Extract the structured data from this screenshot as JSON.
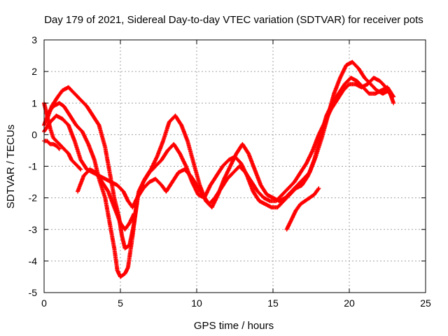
{
  "chart_data": {
    "type": "scatter",
    "title": "Day 179 of 2021, Sidereal Day-to-day VTEC variation (SDTVAR) for receiver pots",
    "xlabel": "GPS time / hours",
    "ylabel": "SDTVAR / TECUs",
    "xlim": [
      0,
      25
    ],
    "ylim": [
      -5,
      3
    ],
    "x_ticks": [
      "0",
      "5",
      "10",
      "15",
      "20",
      "25"
    ],
    "y_ticks": [
      "-5",
      "-4",
      "-3",
      "-2",
      "-1",
      "0",
      "1",
      "2",
      "3"
    ],
    "grid": true,
    "marker": "+",
    "color": "#ff0000",
    "series": [
      {
        "x": [
          0,
          0.3,
          0.6,
          1.0,
          1.3,
          1.7,
          2.1,
          2.5,
          2.9,
          3.3,
          3.6,
          4.0,
          4.3,
          4.6,
          4.8,
          5.0,
          5.3,
          5.5,
          5.8,
          6.1,
          6.5,
          6.9,
          7.3,
          7.7,
          8.1,
          8.5,
          8.9,
          9.3,
          9.7,
          10.1,
          10.5,
          10.9,
          11.3,
          11.7,
          12.1,
          12.5,
          12.9,
          13.3,
          13.7,
          14.1,
          14.5,
          14.9,
          15.3,
          15.7,
          16.1,
          16.5,
          16.9,
          17.3,
          17.7,
          18.1,
          18.5,
          18.9,
          19.3,
          19.7,
          20.1,
          20.5,
          20.9,
          21.3,
          21.7,
          22.1,
          22.5,
          22.9
        ],
        "y": [
          0.3,
          0.7,
          0.9,
          1.0,
          0.9,
          0.6,
          0.3,
          0.1,
          -0.3,
          -0.8,
          -1.4,
          -2.0,
          -2.8,
          -3.6,
          -4.3,
          -4.5,
          -4.4,
          -4.2,
          -3.2,
          -2.0,
          -1.5,
          -1.2,
          -1.0,
          -0.8,
          -0.5,
          -0.3,
          -0.6,
          -1.0,
          -1.5,
          -1.9,
          -2.0,
          -1.6,
          -1.3,
          -1.0,
          -0.8,
          -0.7,
          -0.9,
          -1.3,
          -1.8,
          -2.1,
          -2.2,
          -2.3,
          -2.3,
          -2.1,
          -1.9,
          -1.7,
          -1.6,
          -1.3,
          -0.8,
          -0.1,
          0.6,
          1.0,
          1.3,
          1.6,
          1.8,
          1.7,
          1.5,
          1.3,
          1.3,
          1.4,
          1.5,
          1.2
        ]
      },
      {
        "x": [
          0.2,
          0.5,
          0.9,
          1.2,
          1.6,
          2.0,
          2.4,
          2.8,
          3.2,
          3.6,
          4.0,
          4.3,
          4.6,
          4.9,
          5.1,
          5.3,
          5.6,
          5.9,
          6.2,
          6.6,
          7.0,
          7.4,
          7.8,
          8.2,
          8.6,
          9.0,
          9.4,
          9.8,
          10.2,
          10.6,
          11.0,
          11.4,
          11.8,
          12.2,
          12.6,
          13.0,
          13.4,
          13.8,
          14.2,
          14.6,
          15.0,
          15.4,
          15.8,
          16.2,
          16.6,
          17.0,
          17.4,
          17.8,
          18.2,
          18.6,
          19.0,
          19.4,
          19.8,
          20.2,
          20.6,
          21.0,
          21.4,
          21.8,
          22.2,
          22.6,
          22.9
        ],
        "y": [
          0.5,
          0.9,
          1.2,
          1.4,
          1.5,
          1.3,
          1.1,
          0.9,
          0.6,
          0.3,
          -0.4,
          -1.2,
          -2.0,
          -2.6,
          -3.2,
          -3.6,
          -3.5,
          -2.8,
          -1.8,
          -1.4,
          -1.1,
          -0.7,
          -0.2,
          0.4,
          0.6,
          0.3,
          -0.2,
          -0.9,
          -1.6,
          -2.1,
          -2.3,
          -1.9,
          -1.4,
          -1.0,
          -0.6,
          -0.3,
          -0.6,
          -1.1,
          -1.6,
          -1.9,
          -2.0,
          -2.1,
          -2.0,
          -1.8,
          -1.6,
          -1.4,
          -1.2,
          -0.7,
          -0.1,
          0.6,
          1.3,
          1.8,
          2.2,
          2.3,
          2.1,
          1.8,
          1.6,
          1.4,
          1.3,
          1.4,
          1.0
        ]
      },
      {
        "x": [
          0,
          0.4,
          0.8,
          1.2,
          1.6,
          2.0,
          2.4,
          2.8,
          3.2,
          3.6,
          4.0,
          4.4,
          4.8,
          5.2,
          5.5,
          5.8,
          6.1,
          6.5,
          6.9,
          7.3,
          7.7,
          8.0,
          8.4,
          8.8,
          9.2,
          9.6,
          10.0,
          10.4,
          10.8,
          11.2,
          11.6,
          12.0,
          12.4,
          12.8,
          13.2,
          13.6,
          14.0,
          14.4,
          14.8,
          15.2,
          15.6,
          16.0,
          16.4,
          16.8,
          17.2,
          17.6,
          18.0,
          18.4,
          18.8,
          19.2,
          19.6,
          20.0,
          20.4,
          20.8,
          21.2,
          21.6,
          22.0,
          22.4,
          22.8
        ],
        "y": [
          0.1,
          0.4,
          0.6,
          0.5,
          0.3,
          -0.2,
          -0.8,
          -1.1,
          -1.2,
          -1.3,
          -1.4,
          -1.5,
          -1.6,
          -1.8,
          -2.1,
          -2.3,
          -2.0,
          -1.7,
          -1.5,
          -1.4,
          -1.6,
          -1.8,
          -1.5,
          -1.2,
          -1.1,
          -1.3,
          -1.6,
          -1.9,
          -2.2,
          -2.0,
          -1.7,
          -1.4,
          -1.2,
          -1.0,
          -1.2,
          -1.5,
          -1.8,
          -2.0,
          -2.1,
          -2.1,
          -1.9,
          -1.7,
          -1.5,
          -1.2,
          -0.9,
          -0.5,
          0.0,
          0.4,
          0.8,
          1.1,
          1.4,
          1.6,
          1.6,
          1.5,
          1.6,
          1.8,
          1.7,
          1.5,
          1.2
        ]
      },
      {
        "x": [
          0,
          0.2,
          0.4,
          0.6,
          0.8,
          1.0,
          1.2,
          1.4,
          1.6,
          1.8,
          2.0,
          2.2,
          2.4
        ],
        "y": [
          1.0,
          0.6,
          0.2,
          -0.1,
          -0.2,
          -0.3,
          -0.4,
          -0.5,
          -0.6,
          -0.8,
          -0.9,
          -1.0,
          -1.1
        ]
      },
      {
        "x": [
          0,
          0.2,
          0.4,
          0.6,
          0.8,
          1.0
        ],
        "y": [
          -0.2,
          -0.2,
          -0.3,
          -0.3,
          -0.35,
          -0.45
        ]
      },
      {
        "x": [
          2.2,
          2.6,
          3.0,
          3.4,
          3.8,
          4.2,
          4.6,
          5.0,
          5.3,
          5.6,
          5.9
        ],
        "y": [
          -1.8,
          -1.3,
          -1.1,
          -1.2,
          -1.5,
          -1.8,
          -2.3,
          -2.8,
          -3.0,
          -2.8,
          -2.5
        ]
      },
      {
        "x": [
          15.9,
          16.2,
          16.5,
          16.8,
          17.1,
          17.4,
          17.7,
          18.0
        ],
        "y": [
          -3.0,
          -2.7,
          -2.4,
          -2.2,
          -2.1,
          -2.0,
          -1.9,
          -1.7
        ]
      }
    ]
  }
}
